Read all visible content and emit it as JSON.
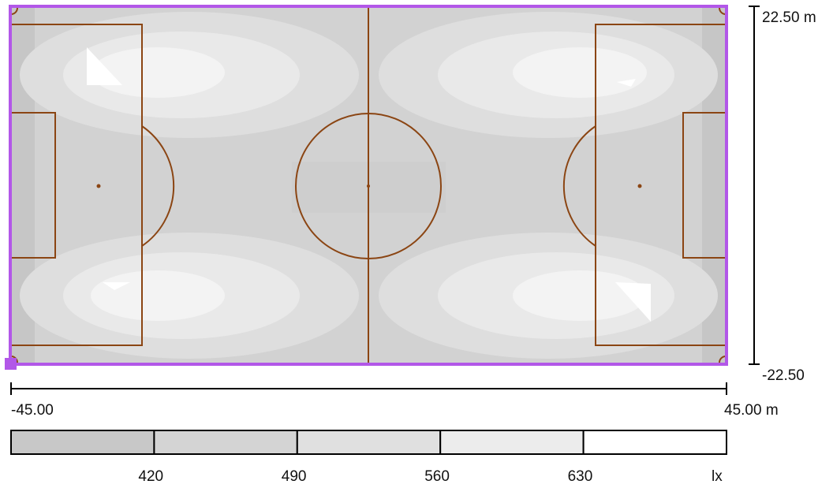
{
  "field": {
    "x_range_m": [
      -45.0,
      45.0
    ],
    "y_range_m": [
      -22.5,
      22.5
    ]
  },
  "axes": {
    "y_top_label": "22.50 m",
    "y_bottom_label": "-22.50",
    "x_left_label": "-45.00",
    "x_right_label": "45.00 m"
  },
  "legend": {
    "ticks": [
      "420",
      "490",
      "560",
      "630"
    ],
    "unit": "lx",
    "bands": [
      {
        "range": "< 420",
        "color": "#c8c8c8"
      },
      {
        "range": "420 - 490",
        "color": "#d4d4d4"
      },
      {
        "range": "490 - 560",
        "color": "#e0e0e0"
      },
      {
        "range": "560 - 630",
        "color": "#ececec"
      },
      {
        "range": "> 630",
        "color": "#ffffff"
      }
    ]
  },
  "colors": {
    "field_outline": "#b257e8",
    "pitch_lines": "#8b4513",
    "axis": "#000000"
  }
}
